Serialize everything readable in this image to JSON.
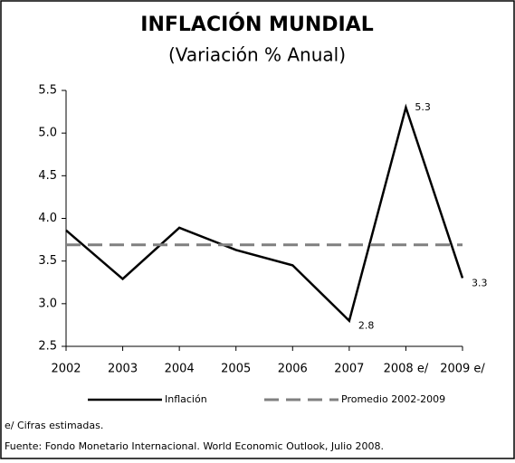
{
  "chart_data": {
    "type": "line",
    "title": "INFLACIÓN MUNDIAL",
    "subtitle": "(Variación % Anual)",
    "categories": [
      "2002",
      "2003",
      "2004",
      "2005",
      "2006",
      "2007",
      "2008 e/",
      "2009 e/"
    ],
    "series": [
      {
        "name": "Inflación",
        "color": "#000000",
        "dashed": false,
        "values": [
          3.86,
          3.29,
          3.89,
          3.63,
          3.45,
          2.8,
          5.3,
          3.3
        ],
        "value_labels": [
          null,
          null,
          null,
          null,
          null,
          "2.8",
          "5.3",
          "3.3"
        ]
      },
      {
        "name": "Promedio 2002-2009",
        "color": "#808080",
        "dashed": true,
        "values": [
          3.69,
          3.69,
          3.69,
          3.69,
          3.69,
          3.69,
          3.69,
          3.69
        ]
      }
    ],
    "ylim": [
      2.5,
      5.5
    ],
    "yticks": [
      2.5,
      {
        "value": 3,
        "label": "3.0"
      },
      3.5,
      {
        "value": 4,
        "label": "4.0"
      },
      4.5,
      {
        "value": 5,
        "label": "5.0"
      },
      5.5
    ],
    "grid": false,
    "legend": "bottom",
    "notes": [
      "e/ Cifras estimadas.",
      "Fuente: Fondo Monetario Internacional. World Economic Outlook, Julio 2008."
    ]
  }
}
